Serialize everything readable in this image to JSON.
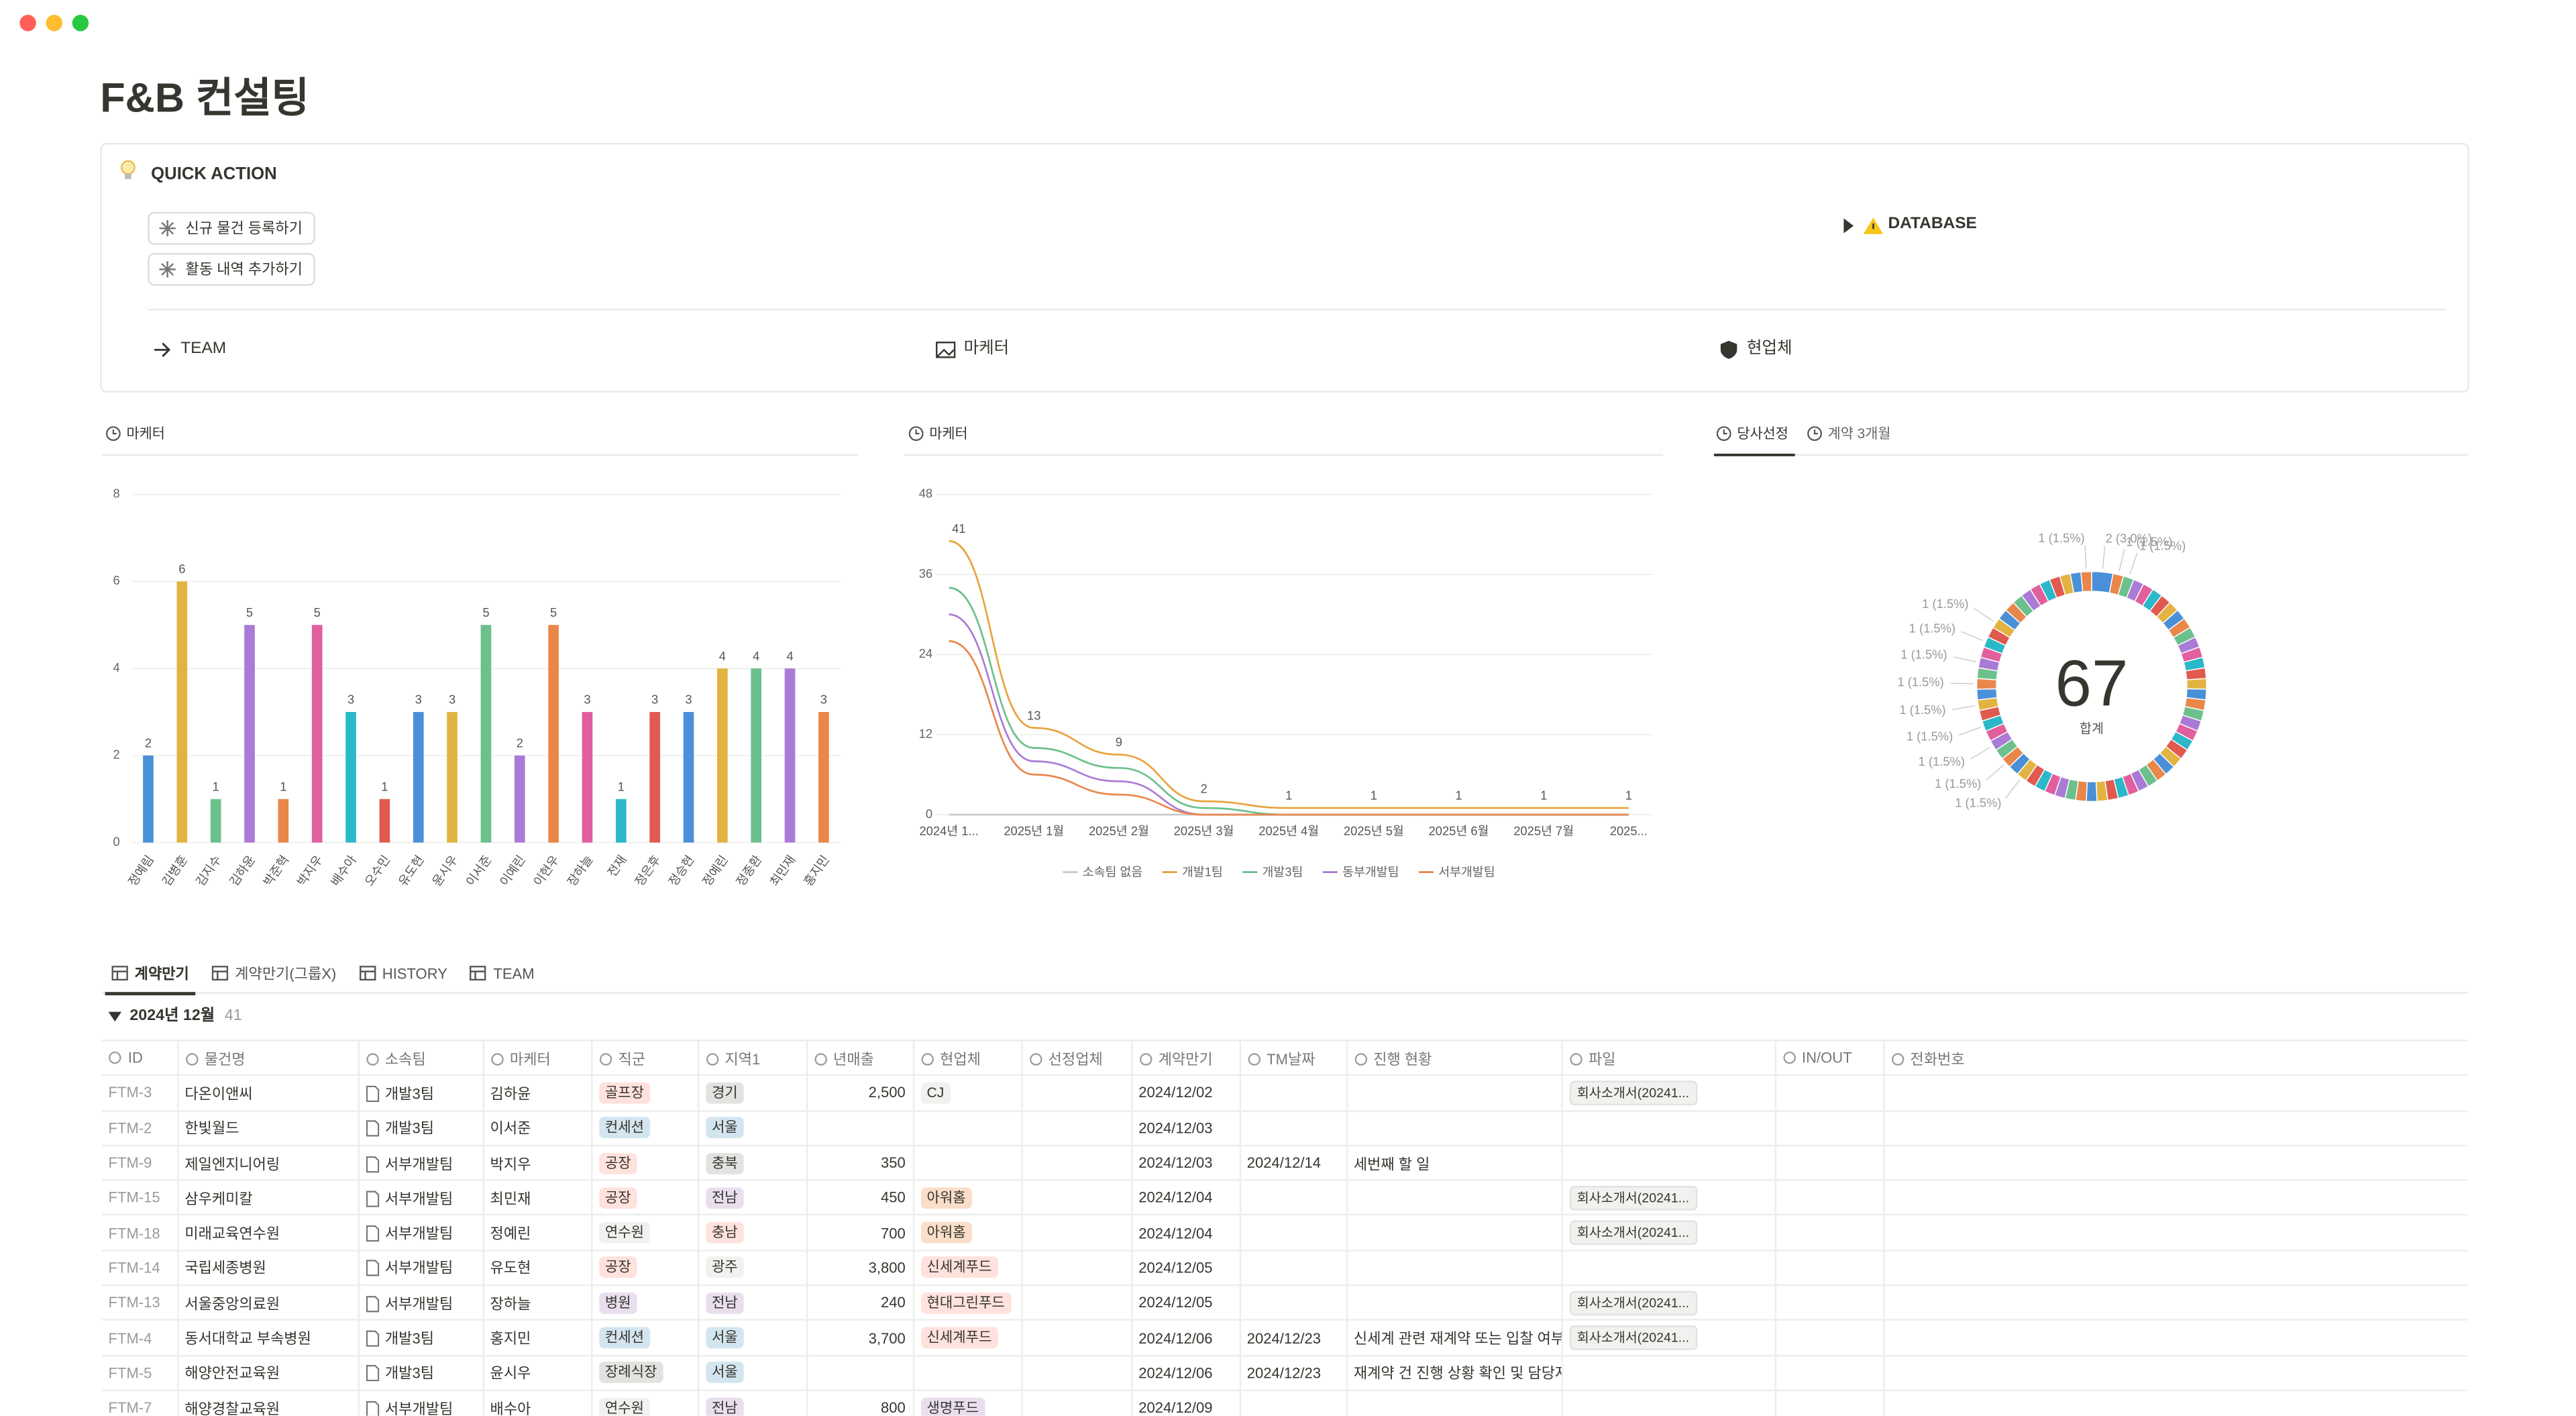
{
  "page": {
    "title": "F&B 컨설팅",
    "quick_action": {
      "title": "QUICK ACTION",
      "buttons": [
        "신규 물건 등록하기",
        "활동 내역 추가하기"
      ],
      "toggle": "DATABASE",
      "links": [
        "TEAM",
        "마케터",
        "현업체"
      ]
    }
  },
  "chart_data": [
    {
      "type": "bar",
      "tabs": [
        "마케터"
      ],
      "categories": [
        "정예림",
        "김병훈",
        "김지수",
        "김하윤",
        "박준혁",
        "박지우",
        "배수아",
        "오수민",
        "유도현",
        "윤시우",
        "이서준",
        "이예린",
        "이현우",
        "장하늘",
        "전재",
        "정은후",
        "정승현",
        "정예린",
        "정종환",
        "최민재",
        "홍지민"
      ],
      "values": [
        2,
        6,
        1,
        5,
        1,
        5,
        3,
        1,
        3,
        3,
        5,
        2,
        5,
        3,
        1,
        3,
        3,
        4,
        4,
        4,
        3
      ],
      "colors": [
        "#4a90d9",
        "#e3b341",
        "#6cc08b",
        "#a97bd6",
        "#e9874a",
        "#e05f9c",
        "#2bb8c9",
        "#e05a4f"
      ],
      "ylim": [
        0,
        8
      ],
      "yticks": [
        0,
        2,
        4,
        6,
        8
      ],
      "grid": true,
      "data_labels": true
    },
    {
      "type": "line",
      "tabs": [
        "마케터"
      ],
      "categories": [
        "2024년 1...",
        "2025년 1월",
        "2025년 2월",
        "2025년 3월",
        "2025년 4월",
        "2025년 5월",
        "2025년 6월",
        "2025년 7월",
        "2025..."
      ],
      "series": [
        {
          "name": "소속팀 없음",
          "color": "#c9c9c9",
          "values": [
            0,
            0,
            0,
            0,
            0,
            0,
            0,
            0,
            0
          ]
        },
        {
          "name": "개발1팀",
          "color": "#e8a33d",
          "values": [
            41,
            13,
            9,
            2,
            1,
            1,
            1,
            1,
            1
          ],
          "data_labels": true
        },
        {
          "name": "개발3팀",
          "color": "#6cc08b",
          "values": [
            34,
            10,
            7,
            1,
            0,
            0,
            0,
            0,
            0
          ]
        },
        {
          "name": "동부개발팀",
          "color": "#a97bd6",
          "values": [
            30,
            8,
            5,
            0,
            0,
            0,
            0,
            0,
            0
          ]
        },
        {
          "name": "서부개발팀",
          "color": "#e9874a",
          "values": [
            26,
            6,
            3,
            0,
            0,
            0,
            0,
            0,
            0
          ]
        }
      ],
      "ylim": [
        0,
        48
      ],
      "yticks": [
        0,
        12,
        24,
        36,
        48
      ],
      "grid": true,
      "legend": "bottom"
    },
    {
      "type": "donut",
      "tabs": [
        "당사선정",
        "계약 3개월"
      ],
      "total": 67,
      "total_label": "합계",
      "categories": [
        null,
        null,
        null,
        null,
        null,
        null,
        null,
        null,
        null,
        null,
        null,
        null,
        null,
        null,
        null,
        null,
        null,
        null,
        null,
        null,
        null,
        null,
        null,
        null,
        null,
        null,
        null,
        null,
        null,
        null,
        null,
        null,
        null,
        null,
        null,
        null,
        null,
        null,
        null,
        null,
        null,
        null,
        null,
        null,
        null,
        null,
        null,
        null,
        null,
        null,
        null,
        null,
        null,
        null,
        null,
        null,
        null,
        null,
        null,
        null,
        null,
        null,
        null,
        null,
        null,
        null
      ],
      "values": [
        2,
        1,
        1,
        1,
        1,
        1,
        1,
        1,
        1,
        1,
        1,
        1,
        1,
        1,
        1,
        1,
        1,
        1,
        1,
        1,
        1,
        1,
        1,
        1,
        1,
        1,
        1,
        1,
        1,
        1,
        1,
        1,
        1,
        1,
        1,
        1,
        1,
        1,
        1,
        1,
        1,
        1,
        1,
        1,
        1,
        1,
        1,
        1,
        1,
        1,
        1,
        1,
        1,
        1,
        1,
        1,
        1,
        1,
        1,
        1,
        1,
        1,
        1,
        1,
        1,
        1
      ],
      "value_labels": [
        "2 (3.0%)",
        "1 (1.5%)",
        "1 (1.5%)",
        null,
        null,
        null,
        null,
        null,
        null,
        null,
        null,
        null,
        null,
        null,
        null,
        null,
        null,
        null,
        null,
        null,
        null,
        null,
        null,
        null,
        null,
        null,
        null,
        null,
        null,
        null,
        null,
        null,
        null,
        null,
        null,
        null,
        null,
        null,
        null,
        "1 (1.5%)",
        null,
        "1 (1.5%)",
        null,
        "1 (1.5%)",
        null,
        "1 (1.5%)",
        null,
        "1 (1.5%)",
        null,
        "1 (1.5%)",
        null,
        "1 (1.5%)",
        null,
        "1 (1.5%)",
        null,
        "1 (1.5%)",
        null,
        null,
        null,
        null,
        null,
        null,
        null,
        null,
        null,
        "1 (1.5%)"
      ],
      "colors": [
        "#4a90d9",
        "#e9874a",
        "#6cc08b",
        "#a97bd6",
        "#e05f9c",
        "#2bb8c9",
        "#e05a4f",
        "#e3b341"
      ]
    }
  ],
  "table": {
    "tabs": [
      "계약만기",
      "계약만기(그룹X)",
      "HISTORY",
      "TEAM"
    ],
    "group": "2024년 12월",
    "group_count": 41,
    "columns": [
      "ID",
      "물건명",
      "소속팀",
      "마케터",
      "직군",
      "지역1",
      "년매출",
      "현업체",
      "선정업체",
      "계약만기",
      "TM날짜",
      "진행 현황",
      "파일",
      "IN/OUT",
      "전화번호"
    ],
    "rows": [
      [
        "FTM-3",
        "다온이앤씨",
        "개발3팀",
        "김하윤",
        "골프장",
        "경기",
        "2,500",
        "CJ",
        null,
        "2024/12/02",
        null,
        null,
        "회사소개서(20241...",
        null,
        null
      ],
      [
        "FTM-2",
        "한빛월드",
        "개발3팀",
        "이서준",
        "컨세션",
        "서울",
        null,
        null,
        null,
        "2024/12/03",
        null,
        null,
        null,
        null,
        null
      ],
      [
        "FTM-9",
        "제일엔지니어링",
        "서부개발팀",
        "박지우",
        "공장",
        "충북",
        "350",
        null,
        null,
        "2024/12/03",
        "2024/12/14",
        "세번째 할 일",
        null,
        null,
        null
      ],
      [
        "FTM-15",
        "삼우케미칼",
        "서부개발팀",
        "최민재",
        "공장",
        "전남",
        "450",
        "아워홈",
        null,
        "2024/12/04",
        null,
        null,
        "회사소개서(20241...",
        null,
        null
      ],
      [
        "FTM-18",
        "미래교육연수원",
        "서부개발팀",
        "정예린",
        "연수원",
        "충남",
        "700",
        "아워홈",
        null,
        "2024/12/04",
        null,
        null,
        "회사소개서(20241...",
        null,
        null
      ],
      [
        "FTM-14",
        "국립세종병원",
        "서부개발팀",
        "유도현",
        "공장",
        "광주",
        "3,800",
        "신세계푸드",
        null,
        "2024/12/05",
        null,
        null,
        null,
        null,
        null
      ],
      [
        "FTM-13",
        "서울중앙의료원",
        "서부개발팀",
        "장하늘",
        "병원",
        "전남",
        "240",
        "현대그린푸드",
        null,
        "2024/12/05",
        null,
        null,
        "회사소개서(20241...",
        null,
        null
      ],
      [
        "FTM-4",
        "동서대학교 부속병원",
        "개발3팀",
        "홍지민",
        "컨세션",
        "서울",
        "3,700",
        "신세계푸드",
        null,
        "2024/12/06",
        "2024/12/23",
        "신세계 관련 재계약 또는 입찰 여부",
        "회사소개서(20241...",
        null,
        null
      ],
      [
        "FTM-5",
        "해양안전교육원",
        "개발3팀",
        "윤시우",
        "장례식장",
        "서울",
        null,
        null,
        null,
        "2024/12/06",
        "2024/12/23",
        "재계약 건 진행 상황 확인 및 담당자",
        null,
        null,
        null
      ],
      [
        "FTM-7",
        "해양경찰교육원",
        "서부개발팀",
        "배수아",
        "연수원",
        "전남",
        "800",
        "생명푸드",
        null,
        "2024/12/09",
        null,
        null,
        null,
        null,
        null
      ]
    ],
    "tag_columns": [
      4,
      5,
      7
    ],
    "file_column": 12,
    "right_align_columns": [
      6
    ],
    "id_column": 0,
    "team_column": 2,
    "tag_colors": {
      "골프장": "#ffe2dd",
      "컨세션": "#d3e5ef",
      "공장": "#ffe2dd",
      "연수원": "#f1f1ef",
      "병원": "#e8deee",
      "장례식장": "#e3e2e0",
      "경기": "#e3e2e0",
      "서울": "#d3e5ef",
      "충북": "#e3e2e0",
      "전남": "#e8deee",
      "충남": "#ffe2dd",
      "광주": "#f1f1ef",
      "CJ": "#f1f1ef",
      "아워홈": "#fadec9",
      "신세계푸드": "#ffe2dd",
      "현대그린푸드": "#ffe2dd",
      "생명푸드": "#e8deee"
    }
  }
}
